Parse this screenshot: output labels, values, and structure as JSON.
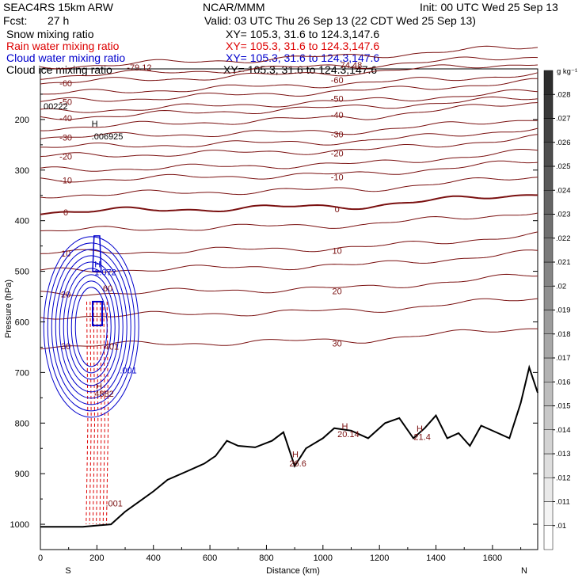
{
  "header": {
    "model": "SEAC4RS 15km ARW",
    "center": "NCAR/MMM",
    "init": "Init: 00 UTC Wed 25 Sep 13",
    "fcst_label": "Fcst:",
    "fcst_value": "27 h",
    "valid": "Valid: 03 UTC Thu 26 Sep 13 (22 CDT Wed 25 Sep 13)"
  },
  "legend": [
    {
      "name": "Snow mixing ratio",
      "xy": "XY= 105.3, 31.6 to 124.3,147.6",
      "color": "#000000"
    },
    {
      "name": "Rain water mixing ratio",
      "xy": "XY= 105.3, 31.6 to 124.3,147.6",
      "color": "#dd0000"
    },
    {
      "name": "Cloud water mixing ratio",
      "xy": "XY= 105.3, 31.6 to 124.3,147.6",
      "color": "#0000cc"
    },
    {
      "name": "Cloud ice mixing ratio",
      "xy": "XY= 105.3, 31.6 to 124.3,147.6",
      "color": "#000000"
    }
  ],
  "chart_data": {
    "type": "contour-cross-section",
    "xlabel": "Distance (km)",
    "ylabel": "Pressure (hPa)",
    "x_ticks": [
      0,
      200,
      400,
      600,
      800,
      1000,
      1200,
      1400,
      1600
    ],
    "y_ticks": [
      200,
      300,
      400,
      500,
      600,
      700,
      800,
      900,
      1000
    ],
    "xlim": [
      0,
      1760
    ],
    "ylim": [
      1050,
      100
    ],
    "x_end_labels": {
      "left": "S",
      "right": "N"
    },
    "colorbar": {
      "unit": "g kg⁻¹",
      "ticks": [
        ".01",
        ".011",
        ".012",
        ".013",
        ".014",
        ".015",
        ".016",
        ".017",
        ".018",
        ".019",
        ".02",
        ".021",
        ".022",
        ".023",
        ".024",
        ".025",
        ".026",
        ".027",
        ".028"
      ]
    },
    "temperature_contours": [
      {
        "value": -70,
        "label": "-79.12",
        "base": 96
      },
      {
        "value": -70,
        "label": "74.48",
        "base": 96
      },
      {
        "value": -60,
        "label": "-60",
        "base": 128
      },
      {
        "value": -50,
        "label": "-50",
        "base": 165
      },
      {
        "value": -40,
        "label": "-40",
        "base": 197
      },
      {
        "value": -30,
        "label": "-30",
        "base": 235
      },
      {
        "value": -20,
        "label": "-20",
        "base": 273
      },
      {
        "value": -10,
        "label": "-10",
        "base": 320
      },
      {
        "value": 0,
        "label": "0",
        "base": 383
      },
      {
        "value": 10,
        "label": "10",
        "base": 465
      },
      {
        "value": 20,
        "label": "20",
        "base": 545
      },
      {
        "value": 30,
        "label": "30",
        "base": 648
      }
    ],
    "terrain": [
      [
        0,
        1005
      ],
      [
        150,
        1005
      ],
      [
        250,
        1000
      ],
      [
        300,
        975
      ],
      [
        350,
        955
      ],
      [
        400,
        935
      ],
      [
        450,
        912
      ],
      [
        520,
        895
      ],
      [
        580,
        880
      ],
      [
        620,
        865
      ],
      [
        660,
        835
      ],
      [
        700,
        845
      ],
      [
        760,
        848
      ],
      [
        820,
        835
      ],
      [
        860,
        818
      ],
      [
        900,
        885
      ],
      [
        940,
        850
      ],
      [
        1000,
        830
      ],
      [
        1040,
        810
      ],
      [
        1100,
        815
      ],
      [
        1160,
        830
      ],
      [
        1220,
        800
      ],
      [
        1270,
        790
      ],
      [
        1320,
        830
      ],
      [
        1360,
        810
      ],
      [
        1400,
        785
      ],
      [
        1440,
        830
      ],
      [
        1480,
        820
      ],
      [
        1520,
        845
      ],
      [
        1560,
        805
      ],
      [
        1620,
        820
      ],
      [
        1660,
        830
      ],
      [
        1700,
        760
      ],
      [
        1730,
        690
      ],
      [
        1760,
        740
      ]
    ],
    "annotations": [
      {
        "text": "00222",
        "x": 0,
        "y": 178
      },
      {
        "text": "H",
        "x": 170,
        "y": 200
      },
      {
        "text": ".006925",
        "x": 170,
        "y": 216
      },
      {
        "text": "H",
        "x": 180,
        "y": 492
      },
      {
        "text": "1.072",
        "x": 180,
        "y": 508
      },
      {
        "text": "60",
        "x": 210,
        "y": 540
      },
      {
        "text": "401",
        "x": 215,
        "y": 655
      },
      {
        "text": ".001",
        "x": 270,
        "y": 702
      },
      {
        "text": "H",
        "x": 185,
        "y": 733
      },
      {
        "text": "4882",
        "x": 180,
        "y": 748
      },
      {
        "text": ".001",
        "x": 220,
        "y": 965
      },
      {
        "text": "H",
        "x": 880,
        "y": 868
      },
      {
        "text": "26.6",
        "x": 870,
        "y": 886
      },
      {
        "text": "H",
        "x": 1055,
        "y": 812
      },
      {
        "text": "20.14",
        "x": 1040,
        "y": 828
      },
      {
        "text": "H",
        "x": 1320,
        "y": 817
      },
      {
        "text": "21.4",
        "x": 1310,
        "y": 833
      }
    ]
  }
}
